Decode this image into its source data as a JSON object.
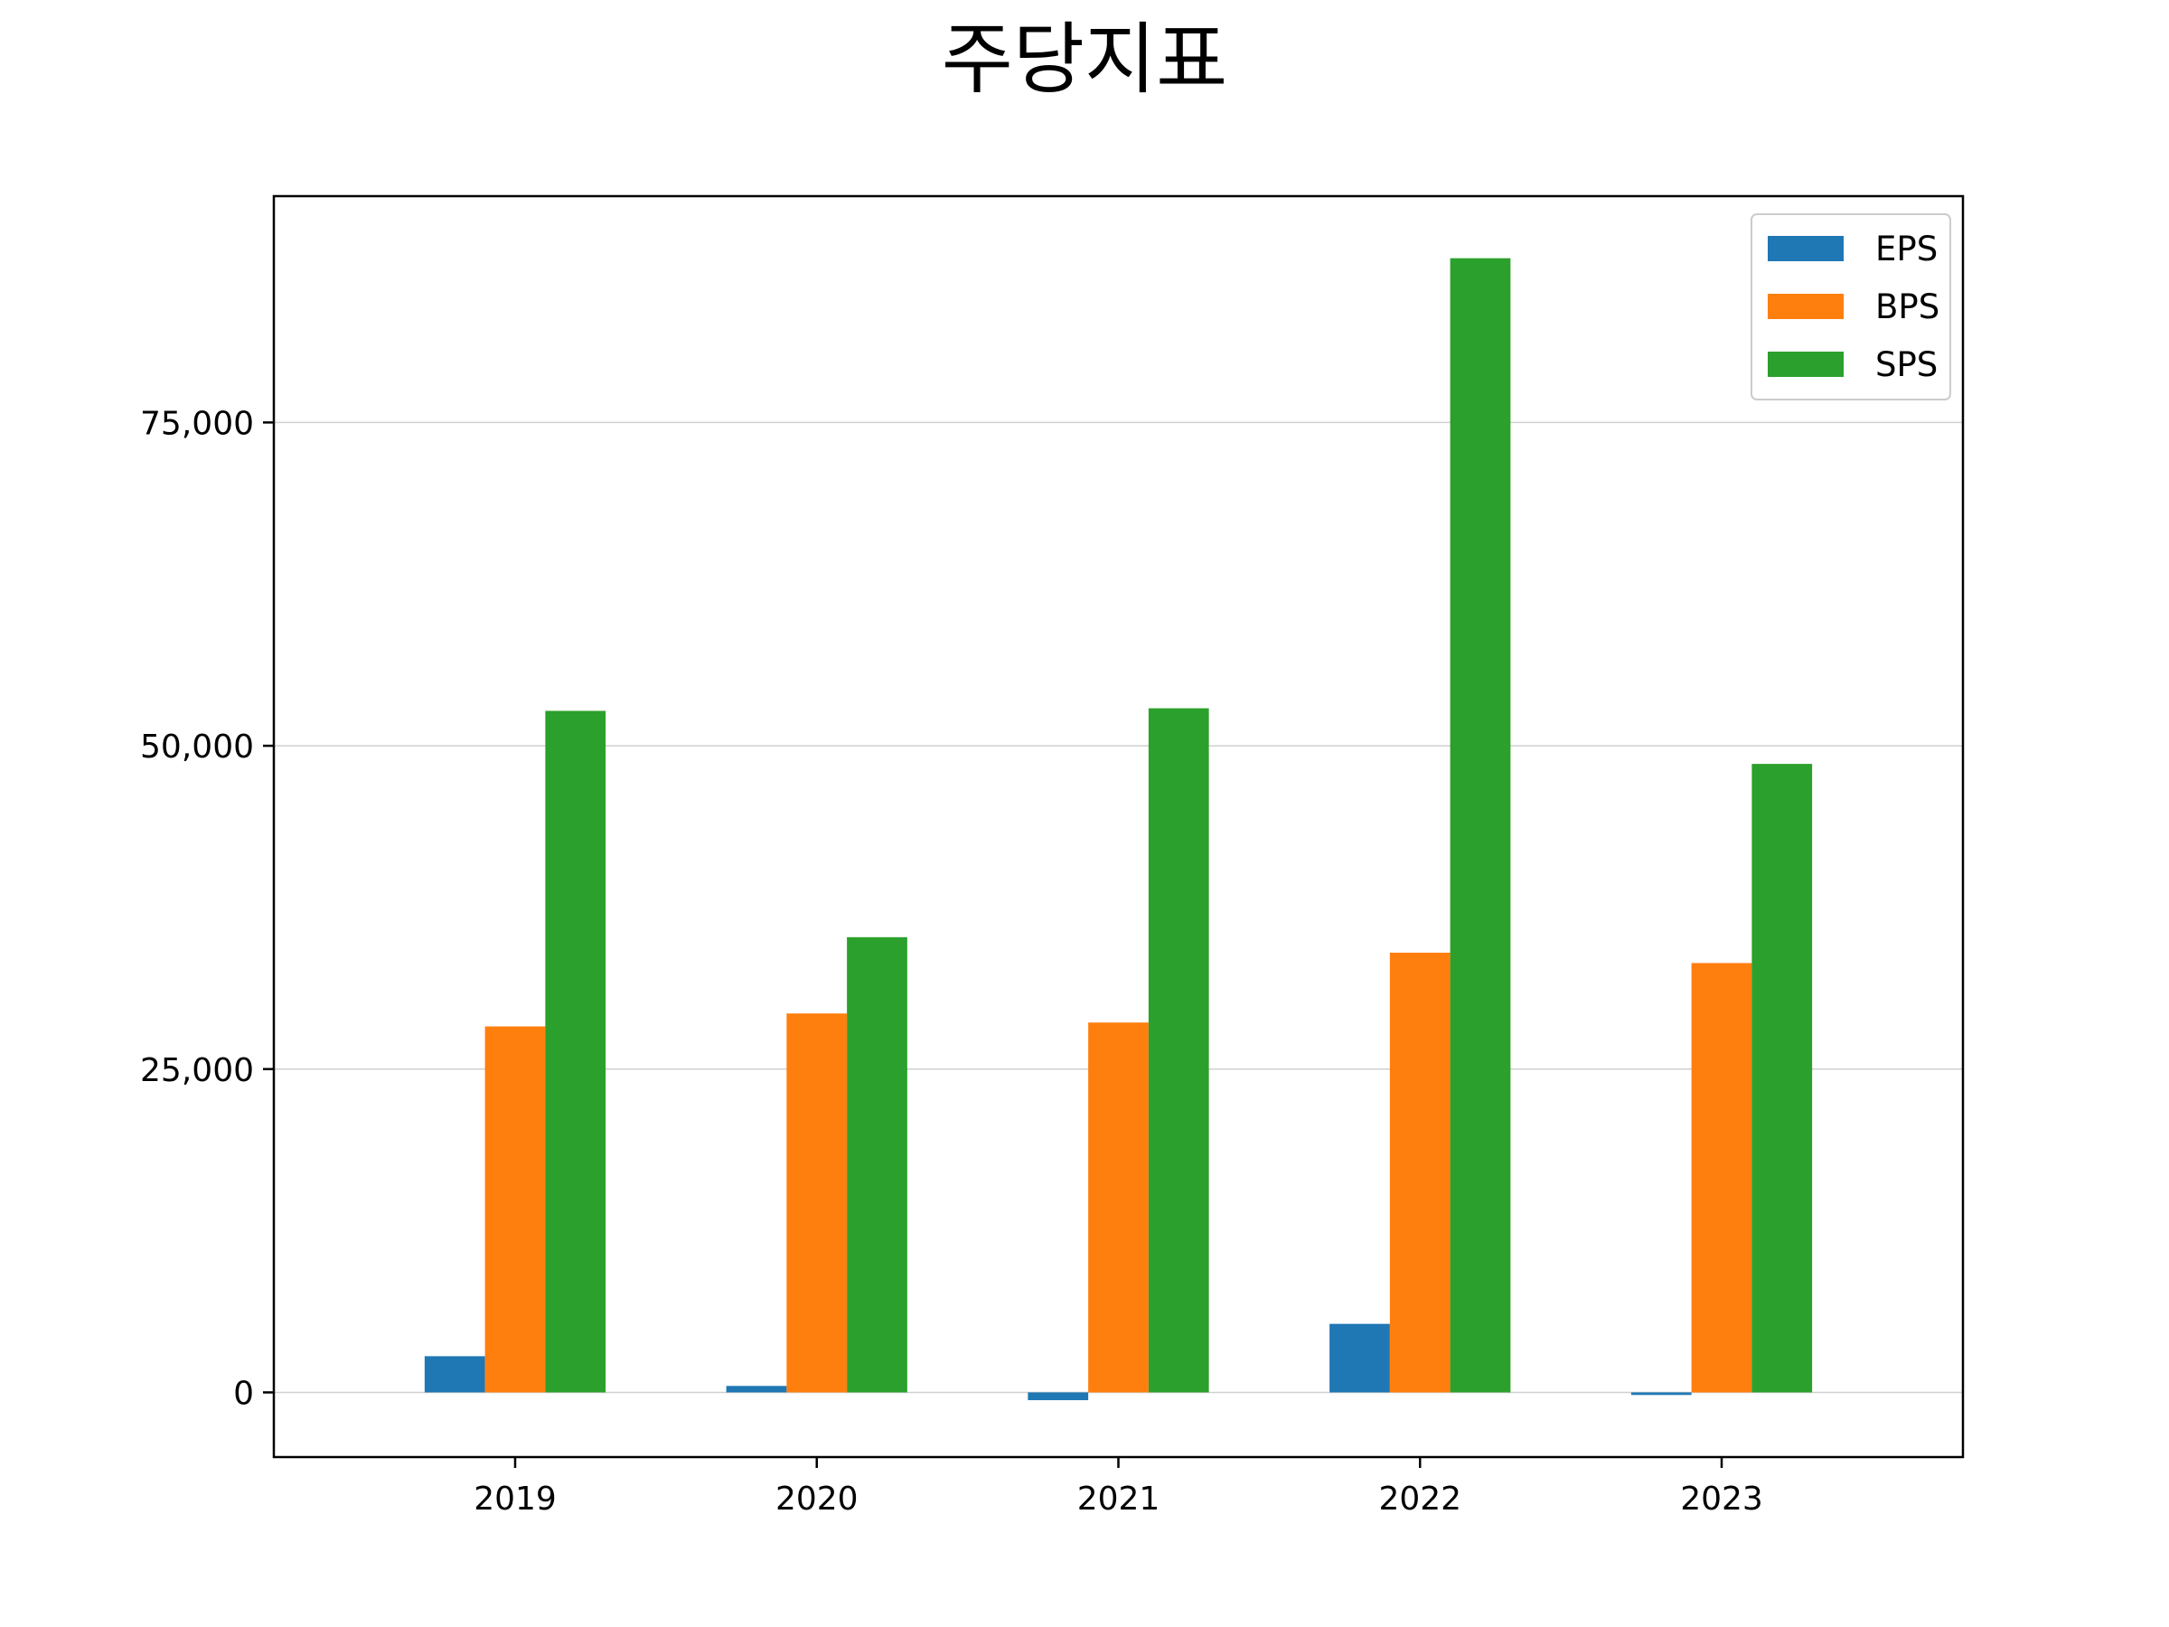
{
  "chart_data": {
    "type": "bar",
    "title": "주당지표",
    "xlabel": "",
    "ylabel": "",
    "categories": [
      "2019",
      "2020",
      "2021",
      "2022",
      "2023"
    ],
    "series": [
      {
        "name": "EPS",
        "color": "#1f77b4",
        "values": [
          2800,
          500,
          -600,
          5300,
          -200
        ]
      },
      {
        "name": "BPS",
        "color": "#ff7f0e",
        "values": [
          28300,
          29300,
          28600,
          34000,
          33200
        ]
      },
      {
        "name": "SPS",
        "color": "#2ca02c",
        "values": [
          52700,
          35200,
          52900,
          87700,
          48600
        ]
      }
    ],
    "ylim": [
      -5000,
      92500
    ],
    "yticks": [
      0,
      25000,
      50000,
      75000
    ],
    "ytick_labels": [
      "0",
      "25,000",
      "50,000",
      "75,000"
    ],
    "grid": "y",
    "legend": "top-right"
  }
}
